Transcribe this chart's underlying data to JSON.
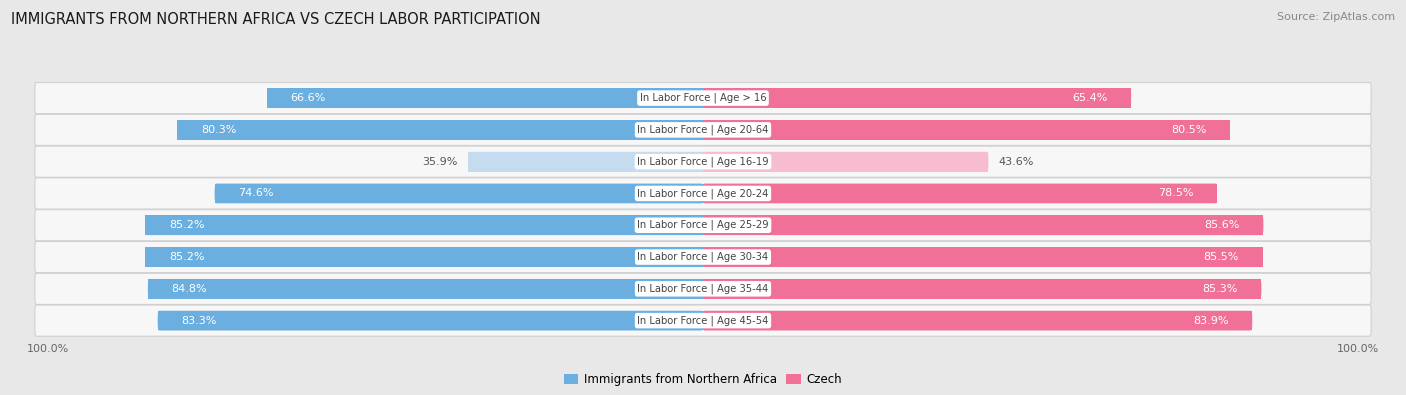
{
  "title": "IMMIGRANTS FROM NORTHERN AFRICA VS CZECH LABOR PARTICIPATION",
  "source": "Source: ZipAtlas.com",
  "categories": [
    "In Labor Force | Age > 16",
    "In Labor Force | Age 20-64",
    "In Labor Force | Age 16-19",
    "In Labor Force | Age 20-24",
    "In Labor Force | Age 25-29",
    "In Labor Force | Age 30-34",
    "In Labor Force | Age 35-44",
    "In Labor Force | Age 45-54"
  ],
  "immigrants_values": [
    66.6,
    80.3,
    35.9,
    74.6,
    85.2,
    85.2,
    84.8,
    83.3
  ],
  "czech_values": [
    65.4,
    80.5,
    43.6,
    78.5,
    85.6,
    85.5,
    85.3,
    83.9
  ],
  "immigrants_color": "#6aafe0",
  "immigrants_color_light": "#c5dbf0",
  "czech_color": "#f07098",
  "czech_color_light": "#f8bcd0",
  "background_color": "#e8e8e8",
  "row_bg_color": "#f7f7f7",
  "row_border_color": "#d0d0d0",
  "legend_immigrants": "Immigrants from Northern Africa",
  "legend_czech": "Czech",
  "label_color_dark": "#555555",
  "label_color_white": "#ffffff",
  "center_label_color": "#444444",
  "tick_label_color": "#666666"
}
